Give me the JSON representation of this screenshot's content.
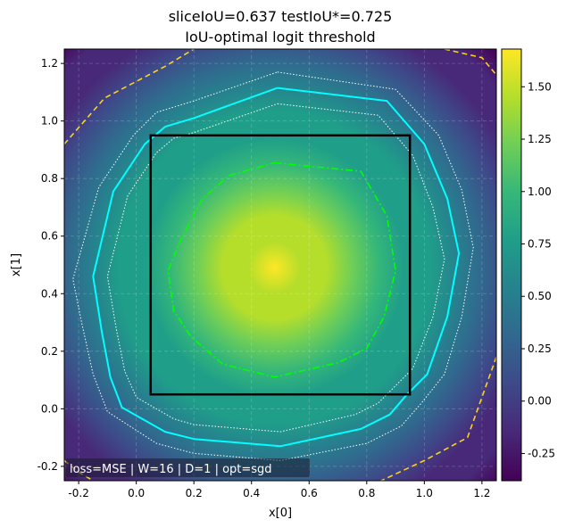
{
  "chart_data": {
    "type": "heatmap",
    "title_line1": "sliceIoU=0.637  testIoU*=0.725",
    "title_line2": "IoU-optimal logit threshold",
    "xlabel": "x[0]",
    "ylabel": "x[1]",
    "xlim": [
      -0.25,
      1.25
    ],
    "ylim": [
      -0.25,
      1.25
    ],
    "x_ticks": [
      "-0.2",
      "0.0",
      "0.2",
      "0.4",
      "0.6",
      "0.8",
      "1.0",
      "1.2"
    ],
    "y_ticks": [
      "-0.2",
      "0.0",
      "0.2",
      "0.4",
      "0.6",
      "0.8",
      "1.0",
      "1.2"
    ],
    "grid": true,
    "colormap": "viridis",
    "colorbar": {
      "range": [
        -0.38,
        1.68
      ],
      "ticks": [
        "-0.25",
        "0.00",
        "0.25",
        "0.50",
        "0.75",
        "1.00",
        "1.25",
        "1.50"
      ]
    },
    "field": {
      "center": [
        0.48,
        0.49
      ],
      "peak": 1.68,
      "corner_value": -0.38
    },
    "annotation": "loss=MSE | W=16 | D=1 | opt=sgd",
    "target_square": {
      "x": [
        0.05,
        0.95
      ],
      "y": [
        0.05,
        0.95
      ],
      "color": "#000000"
    },
    "contours": [
      {
        "style": "solid",
        "color": "#00ffff",
        "points": [
          [
            0.49,
            1.115
          ],
          [
            0.87,
            1.07
          ],
          [
            1.0,
            0.92
          ],
          [
            1.08,
            0.73
          ],
          [
            1.12,
            0.54
          ],
          [
            1.08,
            0.32
          ],
          [
            1.01,
            0.12
          ],
          [
            0.94,
            0.05
          ],
          [
            0.88,
            -0.02
          ],
          [
            0.78,
            -0.07
          ],
          [
            0.5,
            -0.13
          ],
          [
            0.2,
            -0.105
          ],
          [
            0.1,
            -0.08
          ],
          [
            -0.05,
            0.005
          ],
          [
            -0.09,
            0.11
          ],
          [
            -0.12,
            0.27
          ],
          [
            -0.15,
            0.46
          ],
          [
            -0.08,
            0.755
          ],
          [
            0.03,
            0.92
          ],
          [
            0.1,
            0.98
          ],
          [
            0.2,
            1.01
          ],
          [
            0.49,
            1.115
          ]
        ]
      },
      {
        "style": "dotted",
        "color": "#ffffff",
        "points": [
          [
            0.49,
            1.17
          ],
          [
            0.9,
            1.11
          ],
          [
            1.05,
            0.95
          ],
          [
            1.13,
            0.76
          ],
          [
            1.17,
            0.56
          ],
          [
            1.13,
            0.32
          ],
          [
            1.07,
            0.12
          ],
          [
            0.99,
            0.02
          ],
          [
            0.92,
            -0.06
          ],
          [
            0.8,
            -0.12
          ],
          [
            0.5,
            -0.18
          ],
          [
            0.2,
            -0.155
          ],
          [
            0.07,
            -0.12
          ],
          [
            -0.1,
            -0.01
          ],
          [
            -0.15,
            0.12
          ],
          [
            -0.19,
            0.3
          ],
          [
            -0.22,
            0.45
          ],
          [
            -0.13,
            0.77
          ],
          [
            -0.01,
            0.95
          ],
          [
            0.07,
            1.03
          ],
          [
            0.2,
            1.07
          ],
          [
            0.49,
            1.17
          ]
        ]
      },
      {
        "style": "dotted",
        "color": "#ffffff",
        "points": [
          [
            0.49,
            1.06
          ],
          [
            0.84,
            1.02
          ],
          [
            0.96,
            0.88
          ],
          [
            1.03,
            0.7
          ],
          [
            1.07,
            0.52
          ],
          [
            1.03,
            0.32
          ],
          [
            0.96,
            0.14
          ],
          [
            0.9,
            0.08
          ],
          [
            0.84,
            0.02
          ],
          [
            0.76,
            -0.02
          ],
          [
            0.5,
            -0.08
          ],
          [
            0.2,
            -0.055
          ],
          [
            0.13,
            -0.035
          ],
          [
            0.0,
            0.04
          ],
          [
            -0.04,
            0.13
          ],
          [
            -0.07,
            0.28
          ],
          [
            -0.1,
            0.46
          ],
          [
            -0.03,
            0.74
          ],
          [
            0.07,
            0.89
          ],
          [
            0.13,
            0.94
          ],
          [
            0.2,
            0.96
          ],
          [
            0.49,
            1.06
          ]
        ]
      },
      {
        "style": "dashdot",
        "color": "#00ff00",
        "points": [
          [
            0.48,
            0.855
          ],
          [
            0.78,
            0.825
          ],
          [
            0.87,
            0.67
          ],
          [
            0.9,
            0.48
          ],
          [
            0.86,
            0.32
          ],
          [
            0.8,
            0.21
          ],
          [
            0.7,
            0.16
          ],
          [
            0.48,
            0.11
          ],
          [
            0.3,
            0.155
          ],
          [
            0.19,
            0.25
          ],
          [
            0.13,
            0.34
          ],
          [
            0.11,
            0.48
          ],
          [
            0.16,
            0.6
          ],
          [
            0.23,
            0.73
          ],
          [
            0.32,
            0.81
          ],
          [
            0.48,
            0.855
          ]
        ]
      },
      {
        "style": "dashed",
        "color": "#ffd21e",
        "points": [
          [
            -0.25,
            0.92
          ],
          [
            -0.11,
            1.08
          ],
          [
            0.1,
            1.19
          ],
          [
            0.2,
            1.25
          ]
        ]
      },
      {
        "style": "dashed",
        "color": "#ffd21e",
        "points": [
          [
            1.07,
            1.25
          ],
          [
            1.2,
            1.22
          ],
          [
            1.25,
            1.16
          ]
        ]
      },
      {
        "style": "dashed",
        "color": "#ffd21e",
        "points": [
          [
            1.25,
            0.18
          ],
          [
            1.15,
            -0.1
          ],
          [
            1.0,
            -0.18
          ],
          [
            0.85,
            -0.25
          ]
        ]
      },
      {
        "style": "dashed",
        "color": "#ffd21e",
        "points": [
          [
            -0.25,
            -0.18
          ],
          [
            -0.2,
            -0.22
          ],
          [
            -0.15,
            -0.25
          ]
        ]
      }
    ]
  }
}
